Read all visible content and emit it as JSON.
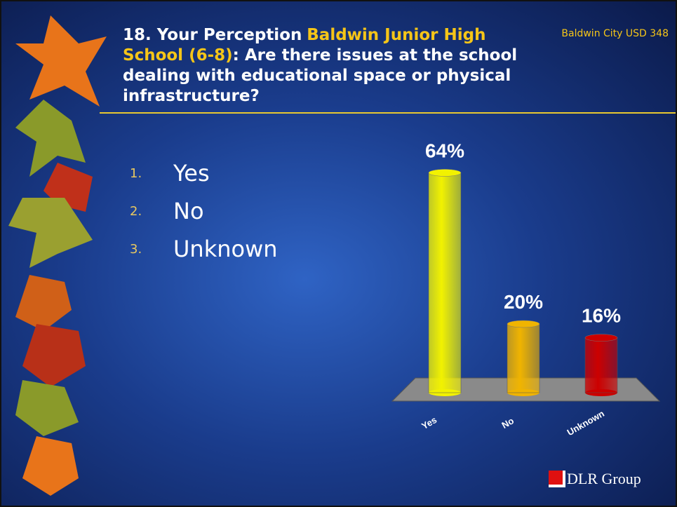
{
  "header": {
    "org": "Baldwin City USD 348"
  },
  "question": {
    "parts": [
      "18. Your Perception",
      "Baldwin Junior High School (6-8)",
      ": Are there issues at the school dealing with educational space or physical infrastructure?"
    ]
  },
  "options": [
    {
      "number": "1.",
      "label": "Yes"
    },
    {
      "number": "2.",
      "label": "No"
    },
    {
      "number": "3.",
      "label": "Unknown"
    }
  ],
  "chart_data": {
    "type": "bar",
    "categories": [
      "Yes",
      "No",
      "Unknown"
    ],
    "values": [
      64,
      20,
      16
    ],
    "value_labels": [
      "64%",
      "20%",
      "16%"
    ],
    "colors": [
      "#f2f200",
      "#f0b400",
      "#cc0000"
    ]
  },
  "logo": "DLR Group"
}
